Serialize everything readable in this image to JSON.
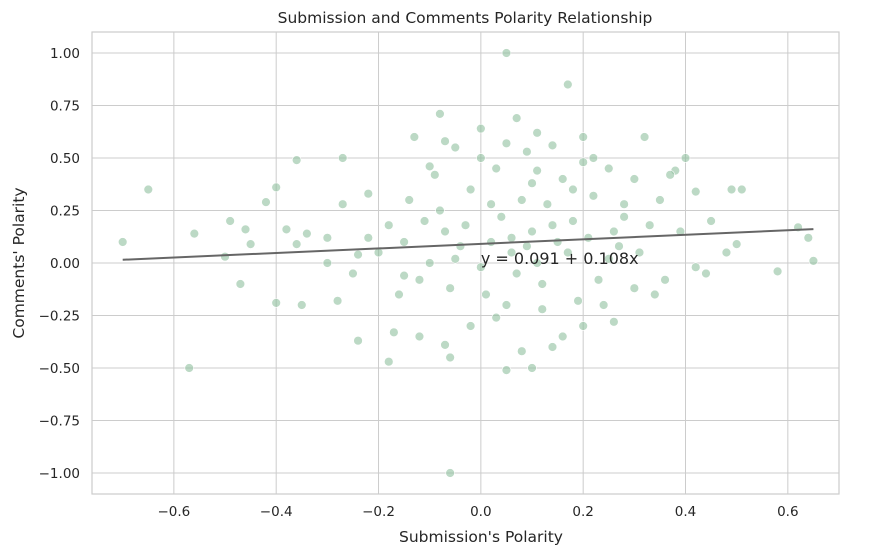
{
  "chart_data": {
    "type": "scatter",
    "title": "Submission and Comments Polarity Relationship",
    "xlabel": "Submission's Polarity",
    "ylabel": "Comments' Polarity",
    "xlim": [
      -0.76,
      0.7
    ],
    "ylim": [
      -1.1,
      1.1
    ],
    "xticks": [
      -0.6,
      -0.4,
      -0.2,
      0.0,
      0.2,
      0.4,
      0.6
    ],
    "xtick_labels": [
      "−0.6",
      "−0.4",
      "−0.2",
      "0.0",
      "0.2",
      "0.4",
      "0.6"
    ],
    "yticks": [
      1.0,
      0.75,
      0.5,
      0.25,
      0.0,
      -0.25,
      -0.5,
      -0.75,
      -1.0
    ],
    "ytick_labels": [
      "1.00",
      "0.75",
      "0.50",
      "0.25",
      "0.00",
      "−0.25",
      "−0.50",
      "−0.75",
      "−1.00"
    ],
    "grid": true,
    "point_color": "#8fbf9f",
    "line_color": "#666666",
    "regression": {
      "intercept": 0.091,
      "slope": 0.108,
      "x_range": [
        -0.7,
        0.65
      ]
    },
    "annotation": {
      "text": "y = 0.091 + 0.108x",
      "x": 0.0,
      "y": 0.0
    },
    "points": [
      [
        0.05,
        1.0
      ],
      [
        0.17,
        0.85
      ],
      [
        -0.08,
        0.71
      ],
      [
        0.07,
        0.69
      ],
      [
        0.0,
        0.64
      ],
      [
        0.11,
        0.62
      ],
      [
        0.2,
        0.6
      ],
      [
        0.32,
        0.6
      ],
      [
        -0.13,
        0.6
      ],
      [
        -0.07,
        0.58
      ],
      [
        0.05,
        0.57
      ],
      [
        0.14,
        0.56
      ],
      [
        -0.05,
        0.55
      ],
      [
        0.09,
        0.53
      ],
      [
        0.22,
        0.5
      ],
      [
        0.0,
        0.5
      ],
      [
        -0.36,
        0.49
      ],
      [
        -0.27,
        0.5
      ],
      [
        0.2,
        0.48
      ],
      [
        0.4,
        0.5
      ],
      [
        -0.1,
        0.46
      ],
      [
        0.25,
        0.45
      ],
      [
        0.11,
        0.44
      ],
      [
        0.38,
        0.44
      ],
      [
        0.37,
        0.42
      ],
      [
        0.3,
        0.4
      ],
      [
        -0.4,
        0.36
      ],
      [
        -0.65,
        0.35
      ],
      [
        0.49,
        0.35
      ],
      [
        0.51,
        0.35
      ],
      [
        -0.22,
        0.33
      ],
      [
        0.42,
        0.34
      ],
      [
        -0.42,
        0.29
      ],
      [
        0.35,
        0.3
      ],
      [
        -0.27,
        0.28
      ],
      [
        -0.49,
        0.2
      ],
      [
        0.45,
        0.2
      ],
      [
        -0.46,
        0.16
      ],
      [
        -0.38,
        0.16
      ],
      [
        0.62,
        0.17
      ],
      [
        -0.56,
        0.14
      ],
      [
        -0.34,
        0.14
      ],
      [
        -0.3,
        0.12
      ],
      [
        0.64,
        0.12
      ],
      [
        -0.7,
        0.1
      ],
      [
        -0.45,
        0.09
      ],
      [
        -0.36,
        0.09
      ],
      [
        0.5,
        0.09
      ],
      [
        -0.5,
        0.03
      ],
      [
        -0.24,
        0.04
      ],
      [
        0.48,
        0.05
      ],
      [
        -0.3,
        0.0
      ],
      [
        0.42,
        -0.02
      ],
      [
        -0.15,
        -0.06
      ],
      [
        0.58,
        -0.04
      ],
      [
        0.65,
        0.01
      ],
      [
        -0.47,
        -0.1
      ],
      [
        -0.4,
        -0.19
      ],
      [
        -0.35,
        -0.2
      ],
      [
        -0.28,
        -0.18
      ],
      [
        0.34,
        -0.15
      ],
      [
        0.44,
        -0.05
      ],
      [
        0.26,
        -0.28
      ],
      [
        -0.17,
        -0.33
      ],
      [
        -0.24,
        -0.37
      ],
      [
        -0.12,
        -0.35
      ],
      [
        -0.57,
        -0.5
      ],
      [
        -0.18,
        -0.47
      ],
      [
        -0.06,
        -0.45
      ],
      [
        0.05,
        -0.51
      ],
      [
        0.1,
        -0.5
      ],
      [
        0.08,
        -0.42
      ],
      [
        0.14,
        -0.4
      ],
      [
        0.16,
        -0.35
      ],
      [
        0.2,
        -0.3
      ],
      [
        -0.07,
        -0.39
      ],
      [
        -0.02,
        -0.3
      ],
      [
        0.03,
        -0.26
      ],
      [
        -0.06,
        -1.0
      ],
      [
        0.12,
        -0.22
      ],
      [
        0.24,
        -0.2
      ],
      [
        0.3,
        -0.12
      ],
      [
        0.36,
        -0.08
      ],
      [
        0.28,
        0.22
      ],
      [
        0.33,
        0.18
      ],
      [
        0.39,
        0.15
      ],
      [
        0.27,
        0.08
      ],
      [
        0.31,
        0.05
      ],
      [
        -0.1,
        0.0
      ],
      [
        -0.05,
        0.02
      ],
      [
        0.02,
        0.1
      ],
      [
        0.06,
        0.12
      ],
      [
        0.1,
        0.15
      ],
      [
        0.15,
        0.1
      ],
      [
        0.18,
        0.2
      ],
      [
        -0.15,
        0.1
      ],
      [
        -0.2,
        0.05
      ],
      [
        -0.08,
        0.25
      ],
      [
        -0.03,
        0.18
      ],
      [
        0.04,
        0.22
      ],
      [
        0.08,
        0.3
      ],
      [
        0.13,
        0.28
      ],
      [
        0.17,
        0.05
      ],
      [
        0.21,
        0.12
      ],
      [
        0.25,
        0.02
      ],
      [
        -0.12,
        -0.08
      ],
      [
        -0.06,
        -0.12
      ],
      [
        0.01,
        -0.15
      ],
      [
        0.07,
        -0.05
      ],
      [
        0.12,
        -0.1
      ],
      [
        0.19,
        -0.18
      ],
      [
        -0.18,
        0.18
      ],
      [
        -0.22,
        0.12
      ],
      [
        -0.25,
        -0.05
      ],
      [
        -0.14,
        0.3
      ],
      [
        -0.02,
        0.35
      ],
      [
        0.1,
        0.38
      ],
      [
        0.16,
        0.4
      ],
      [
        0.22,
        0.32
      ],
      [
        -0.09,
        0.42
      ],
      [
        0.03,
        0.45
      ],
      [
        0.06,
        0.05
      ],
      [
        0.0,
        -0.02
      ],
      [
        0.09,
        0.08
      ],
      [
        0.14,
        0.18
      ],
      [
        -0.04,
        0.08
      ],
      [
        0.05,
        -0.2
      ],
      [
        -0.11,
        0.2
      ],
      [
        0.23,
        -0.08
      ],
      [
        0.28,
        0.28
      ],
      [
        -0.16,
        -0.15
      ],
      [
        0.11,
        0.0
      ],
      [
        0.18,
        0.35
      ],
      [
        -0.07,
        0.15
      ],
      [
        0.02,
        0.28
      ],
      [
        0.26,
        0.15
      ]
    ]
  }
}
